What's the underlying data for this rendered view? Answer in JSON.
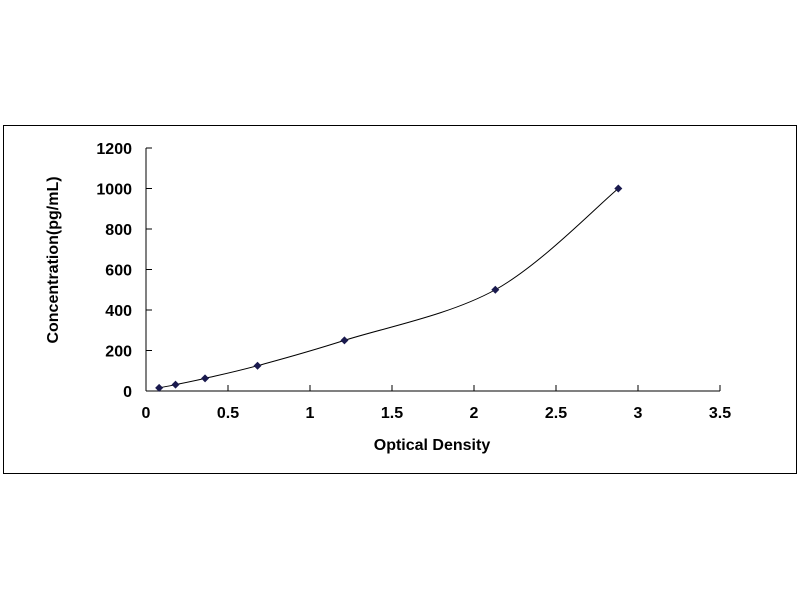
{
  "chart_data": {
    "type": "scatter",
    "title": "",
    "xlabel": "Optical Density",
    "ylabel": "Concentration(pg/mL)",
    "xlim": [
      0,
      3.5
    ],
    "ylim": [
      0,
      1200
    ],
    "x_ticks": [
      "0",
      "0.5",
      "1",
      "1.5",
      "2",
      "2.5",
      "3",
      "3.5"
    ],
    "y_ticks": [
      "0",
      "200",
      "400",
      "600",
      "800",
      "1000",
      "1200"
    ],
    "grid": false,
    "legend": "none",
    "marker": "diamond",
    "marker_color": "#1a1a4e",
    "line": "smooth",
    "series": [
      {
        "x": [
          0.08,
          0.18,
          0.36,
          0.68,
          1.21,
          2.13,
          2.88
        ],
        "y": [
          15.6,
          31.2,
          62.5,
          125,
          250,
          500,
          1000
        ]
      }
    ]
  }
}
